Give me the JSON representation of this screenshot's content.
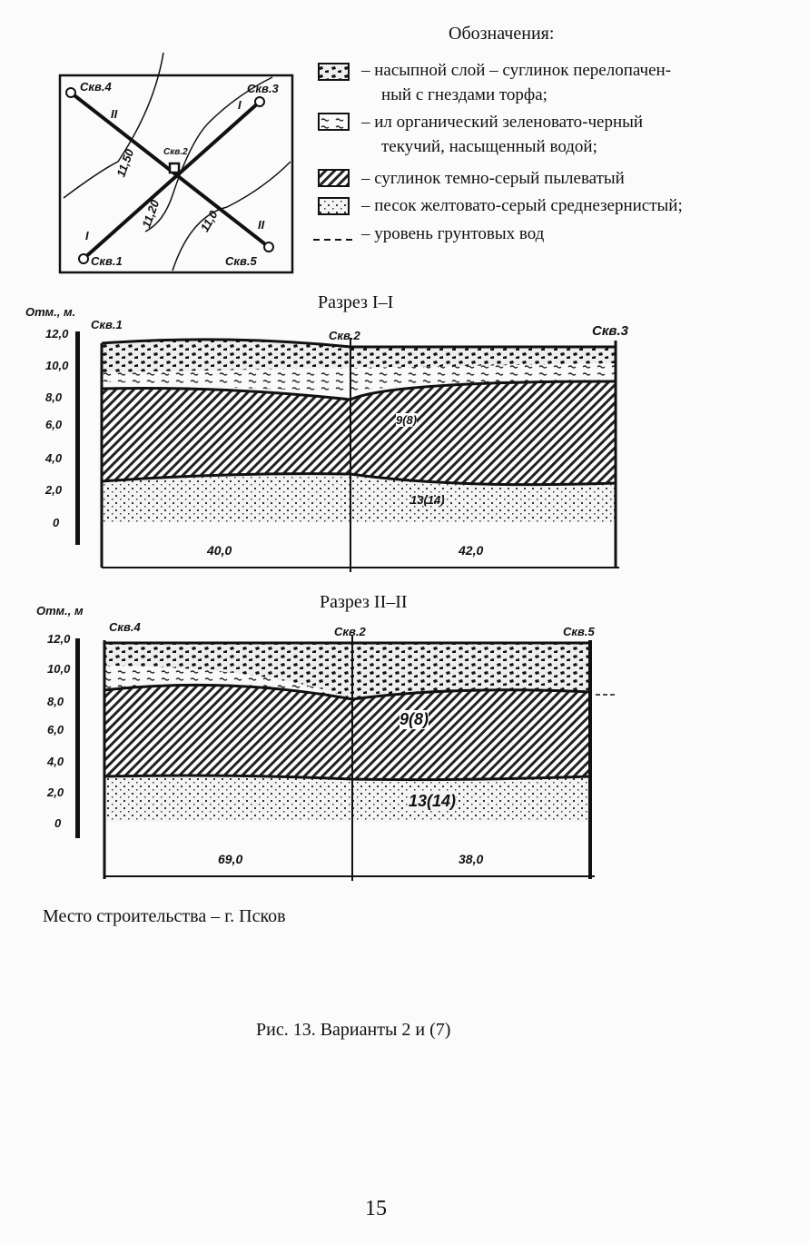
{
  "legend": {
    "title": "Обозначения:",
    "items": [
      {
        "icon": "fill-layer-swatch",
        "text": "– насыпной слой – суглинок перелопачен-",
        "cont": "ный с гнездами торфа;"
      },
      {
        "icon": "silt-swatch",
        "text": "– ил органический зеленовато-черный",
        "cont": "текучий, насыщенный водой;"
      },
      {
        "icon": "loam-hatch-swatch",
        "text": "– суглинок темно-серый пылеватый"
      },
      {
        "icon": "sand-dots-swatch",
        "text": "– песок желтовато-серый среднезернистый;"
      },
      {
        "icon": "groundwater-dashed-line",
        "text": "–  уровень грунтовых вод"
      }
    ]
  },
  "map": {
    "wells": [
      "Скв.4",
      "Скв.3",
      "Скв.2",
      "Скв.1",
      "Скв.5"
    ],
    "contours": [
      "11,50",
      "11,20",
      "11,0"
    ],
    "section_marks": [
      "I",
      "I",
      "II",
      "II"
    ]
  },
  "sections": [
    {
      "title": "Разрез I–I",
      "axis_label": "Отм., м.",
      "ticks": [
        "12,0",
        "10,0",
        "8,0",
        "6,0",
        "4,0",
        "2,0",
        "0"
      ],
      "wells": [
        "Скв.1",
        "Скв.2",
        "Скв.3"
      ],
      "layer_labels": [
        "9(8)",
        "13(14)"
      ],
      "distances": [
        "40,0",
        "42,0"
      ]
    },
    {
      "title": "Разрез II–II",
      "axis_label": "Отм., м",
      "ticks": [
        "12,0",
        "10,0",
        "8,0",
        "6,0",
        "4,0",
        "2,0",
        "0"
      ],
      "wells": [
        "Скв.4",
        "Скв.2",
        "Скв.5"
      ],
      "layer_labels": [
        "9(8)",
        "13(14)"
      ],
      "distances": [
        "69,0",
        "38,0"
      ]
    }
  ],
  "site": "Место строительства – г. Псков",
  "caption": "Рис. 13. Варианты 2 и (7)",
  "page_number": "15"
}
